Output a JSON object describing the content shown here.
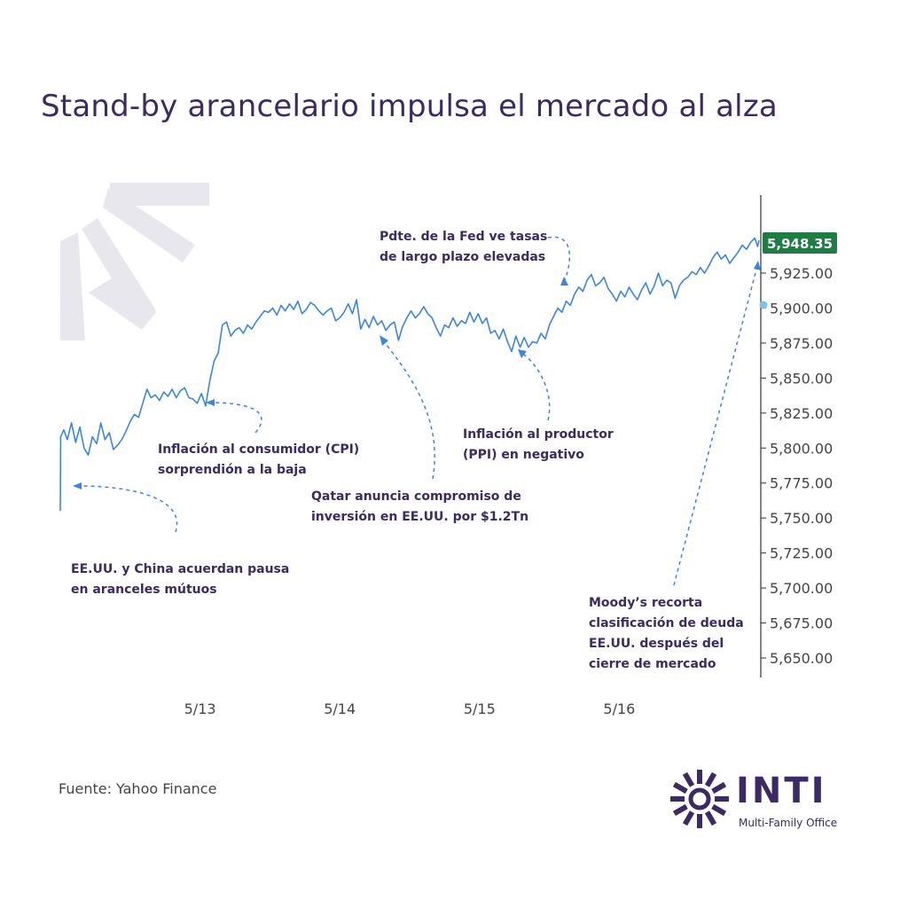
{
  "title": "Stand-by arancelario impulsa el mercado al alza",
  "source": "Fuente: Yahoo Finance",
  "brand": {
    "name": "INTI",
    "tagline": "Multi-Family Office"
  },
  "colors": {
    "line": "#3a86e0",
    "accent": "#3b2a63",
    "price_badge": "#1e7d44",
    "decor": "#e9e7ee"
  },
  "chart_data": {
    "type": "line",
    "title": "Stand-by arancelario impulsa el mercado al alza",
    "xlabel": "",
    "ylabel": "",
    "ylim": [
      5640,
      5960
    ],
    "y_axis_side": "right",
    "grid": false,
    "last_price": 5948.35,
    "last_price_label": "5,948.35",
    "x_range": [
      0,
      100
    ],
    "x_ticks": [
      {
        "x": 20,
        "label": "5/13"
      },
      {
        "x": 40,
        "label": "5/14"
      },
      {
        "x": 60,
        "label": "5/15"
      },
      {
        "x": 80,
        "label": "5/16"
      }
    ],
    "y_ticks": [
      {
        "value": 5925,
        "label": "5,925.00"
      },
      {
        "value": 5900,
        "label": "5,900.00"
      },
      {
        "value": 5875,
        "label": "5,875.00"
      },
      {
        "value": 5850,
        "label": "5,850.00"
      },
      {
        "value": 5825,
        "label": "5,825.00"
      },
      {
        "value": 5800,
        "label": "5,800.00"
      },
      {
        "value": 5775,
        "label": "5,775.00"
      },
      {
        "value": 5750,
        "label": "5,750.00"
      },
      {
        "value": 5725,
        "label": "5,725.00"
      },
      {
        "value": 5700,
        "label": "5,700.00"
      },
      {
        "value": 5675,
        "label": "5,675.00"
      },
      {
        "value": 5650,
        "label": "5,650.00"
      }
    ],
    "series": [
      {
        "values": [
          [
            0,
            5755
          ],
          [
            0.05,
            5808
          ],
          [
            0.5,
            5813
          ],
          [
            1,
            5806
          ],
          [
            1.6,
            5818
          ],
          [
            2.2,
            5804
          ],
          [
            2.8,
            5815
          ],
          [
            3.4,
            5800
          ],
          [
            4,
            5795
          ],
          [
            4.6,
            5808
          ],
          [
            5.2,
            5803
          ],
          [
            5.8,
            5818
          ],
          [
            6.4,
            5806
          ],
          [
            7,
            5811
          ],
          [
            7.6,
            5799
          ],
          [
            8.2,
            5802
          ],
          [
            8.8,
            5806
          ],
          [
            9.4,
            5812
          ],
          [
            10,
            5819
          ],
          [
            10.6,
            5824
          ],
          [
            11.2,
            5822
          ],
          [
            11.8,
            5832
          ],
          [
            12.4,
            5842
          ],
          [
            13,
            5836
          ],
          [
            13.6,
            5838
          ],
          [
            14.2,
            5834
          ],
          [
            14.8,
            5840
          ],
          [
            15.4,
            5837
          ],
          [
            16,
            5842
          ],
          [
            16.6,
            5836
          ],
          [
            17.2,
            5841
          ],
          [
            17.8,
            5843
          ],
          [
            18.4,
            5836
          ],
          [
            19,
            5835
          ],
          [
            19.6,
            5832
          ],
          [
            20.2,
            5839
          ],
          [
            20.8,
            5830
          ],
          [
            21.4,
            5848
          ],
          [
            22,
            5862
          ],
          [
            22.6,
            5868
          ],
          [
            23.2,
            5888
          ],
          [
            23.8,
            5890
          ],
          [
            24.4,
            5880
          ],
          [
            25,
            5884
          ],
          [
            25.6,
            5886
          ],
          [
            26.2,
            5882
          ],
          [
            26.8,
            5888
          ],
          [
            27.4,
            5885
          ],
          [
            28,
            5890
          ],
          [
            28.6,
            5894
          ],
          [
            29.2,
            5898
          ],
          [
            29.8,
            5897
          ],
          [
            30.4,
            5900
          ],
          [
            31,
            5895
          ],
          [
            31.6,
            5902
          ],
          [
            32.2,
            5898
          ],
          [
            32.8,
            5903
          ],
          [
            33.4,
            5899
          ],
          [
            34,
            5905
          ],
          [
            34.6,
            5896
          ],
          [
            35.2,
            5899
          ],
          [
            35.8,
            5904
          ],
          [
            36.4,
            5902
          ],
          [
            37,
            5898
          ],
          [
            37.6,
            5895
          ],
          [
            38.2,
            5898
          ],
          [
            38.8,
            5900
          ],
          [
            39.4,
            5891
          ],
          [
            40,
            5893
          ],
          [
            40.6,
            5897
          ],
          [
            41.2,
            5903
          ],
          [
            41.8,
            5896
          ],
          [
            42.4,
            5906
          ],
          [
            43,
            5885
          ],
          [
            43.6,
            5892
          ],
          [
            44.2,
            5886
          ],
          [
            44.8,
            5894
          ],
          [
            45.4,
            5888
          ],
          [
            46,
            5891
          ],
          [
            46.6,
            5884
          ],
          [
            47.2,
            5888
          ],
          [
            47.8,
            5890
          ],
          [
            48.4,
            5877
          ],
          [
            49,
            5887
          ],
          [
            49.6,
            5893
          ],
          [
            50.2,
            5898
          ],
          [
            50.8,
            5893
          ],
          [
            51.4,
            5896
          ],
          [
            52,
            5901
          ],
          [
            52.6,
            5896
          ],
          [
            53.2,
            5893
          ],
          [
            53.8,
            5886
          ],
          [
            54.4,
            5880
          ],
          [
            55,
            5888
          ],
          [
            55.6,
            5886
          ],
          [
            56.2,
            5893
          ],
          [
            56.8,
            5887
          ],
          [
            57.4,
            5891
          ],
          [
            58,
            5889
          ],
          [
            58.6,
            5897
          ],
          [
            59.2,
            5890
          ],
          [
            59.8,
            5896
          ],
          [
            60.4,
            5889
          ],
          [
            61,
            5893
          ],
          [
            61.6,
            5882
          ],
          [
            62.2,
            5884
          ],
          [
            62.8,
            5878
          ],
          [
            63.4,
            5885
          ],
          [
            64,
            5876
          ],
          [
            64.6,
            5869
          ],
          [
            65.2,
            5880
          ],
          [
            65.8,
            5872
          ],
          [
            66.4,
            5879
          ],
          [
            67,
            5872
          ],
          [
            67.6,
            5876
          ],
          [
            68.2,
            5875
          ],
          [
            68.8,
            5882
          ],
          [
            69.4,
            5878
          ],
          [
            70,
            5888
          ],
          [
            70.6,
            5894
          ],
          [
            71.2,
            5900
          ],
          [
            71.8,
            5897
          ],
          [
            72.4,
            5905
          ],
          [
            73,
            5902
          ],
          [
            73.6,
            5910
          ],
          [
            74.2,
            5915
          ],
          [
            74.8,
            5912
          ],
          [
            75.4,
            5920
          ],
          [
            76,
            5924
          ],
          [
            76.6,
            5916
          ],
          [
            77.2,
            5918
          ],
          [
            77.8,
            5922
          ],
          [
            78.4,
            5914
          ],
          [
            79,
            5910
          ],
          [
            79.6,
            5905
          ],
          [
            80.2,
            5912
          ],
          [
            80.8,
            5908
          ],
          [
            81.4,
            5915
          ],
          [
            82,
            5910
          ],
          [
            82.6,
            5906
          ],
          [
            83.2,
            5913
          ],
          [
            83.8,
            5918
          ],
          [
            84.4,
            5910
          ],
          [
            85,
            5916
          ],
          [
            85.6,
            5925
          ],
          [
            86.2,
            5916
          ],
          [
            86.8,
            5920
          ],
          [
            87.4,
            5918
          ],
          [
            88,
            5907
          ],
          [
            88.6,
            5916
          ],
          [
            89.2,
            5920
          ],
          [
            89.8,
            5922
          ],
          [
            90.4,
            5926
          ],
          [
            91,
            5924
          ],
          [
            91.6,
            5929
          ],
          [
            92.2,
            5925
          ],
          [
            92.8,
            5930
          ],
          [
            93.4,
            5936
          ],
          [
            94,
            5940
          ],
          [
            94.6,
            5935
          ],
          [
            95.2,
            5938
          ],
          [
            95.8,
            5932
          ],
          [
            96.4,
            5936
          ],
          [
            97,
            5940
          ],
          [
            97.6,
            5945
          ],
          [
            98.2,
            5942
          ],
          [
            98.8,
            5947
          ],
          [
            99.4,
            5950
          ],
          [
            99.8,
            5944
          ],
          [
            100,
            5948.35
          ]
        ]
      }
    ],
    "annotations": [
      {
        "lines": [
          "EE.UU. y China acuerdan pausa",
          "en aranceles mútuos"
        ]
      },
      {
        "lines": [
          "Inflación al consumidor (CPI)",
          "sorprendión a la baja"
        ]
      },
      {
        "lines": [
          "Qatar anuncia compromiso de",
          "inversión en EE.UU. por $1.2Tn"
        ]
      },
      {
        "lines": [
          "Inflación al productor",
          "(PPI) en negativo"
        ]
      },
      {
        "lines": [
          "Pdte. de la Fed ve tasas",
          "de largo plazo elevadas"
        ]
      },
      {
        "lines": [
          "Moody’s recorta",
          "clasificación de deuda",
          "EE.UU. después del",
          "cierre de mercado"
        ]
      }
    ]
  }
}
